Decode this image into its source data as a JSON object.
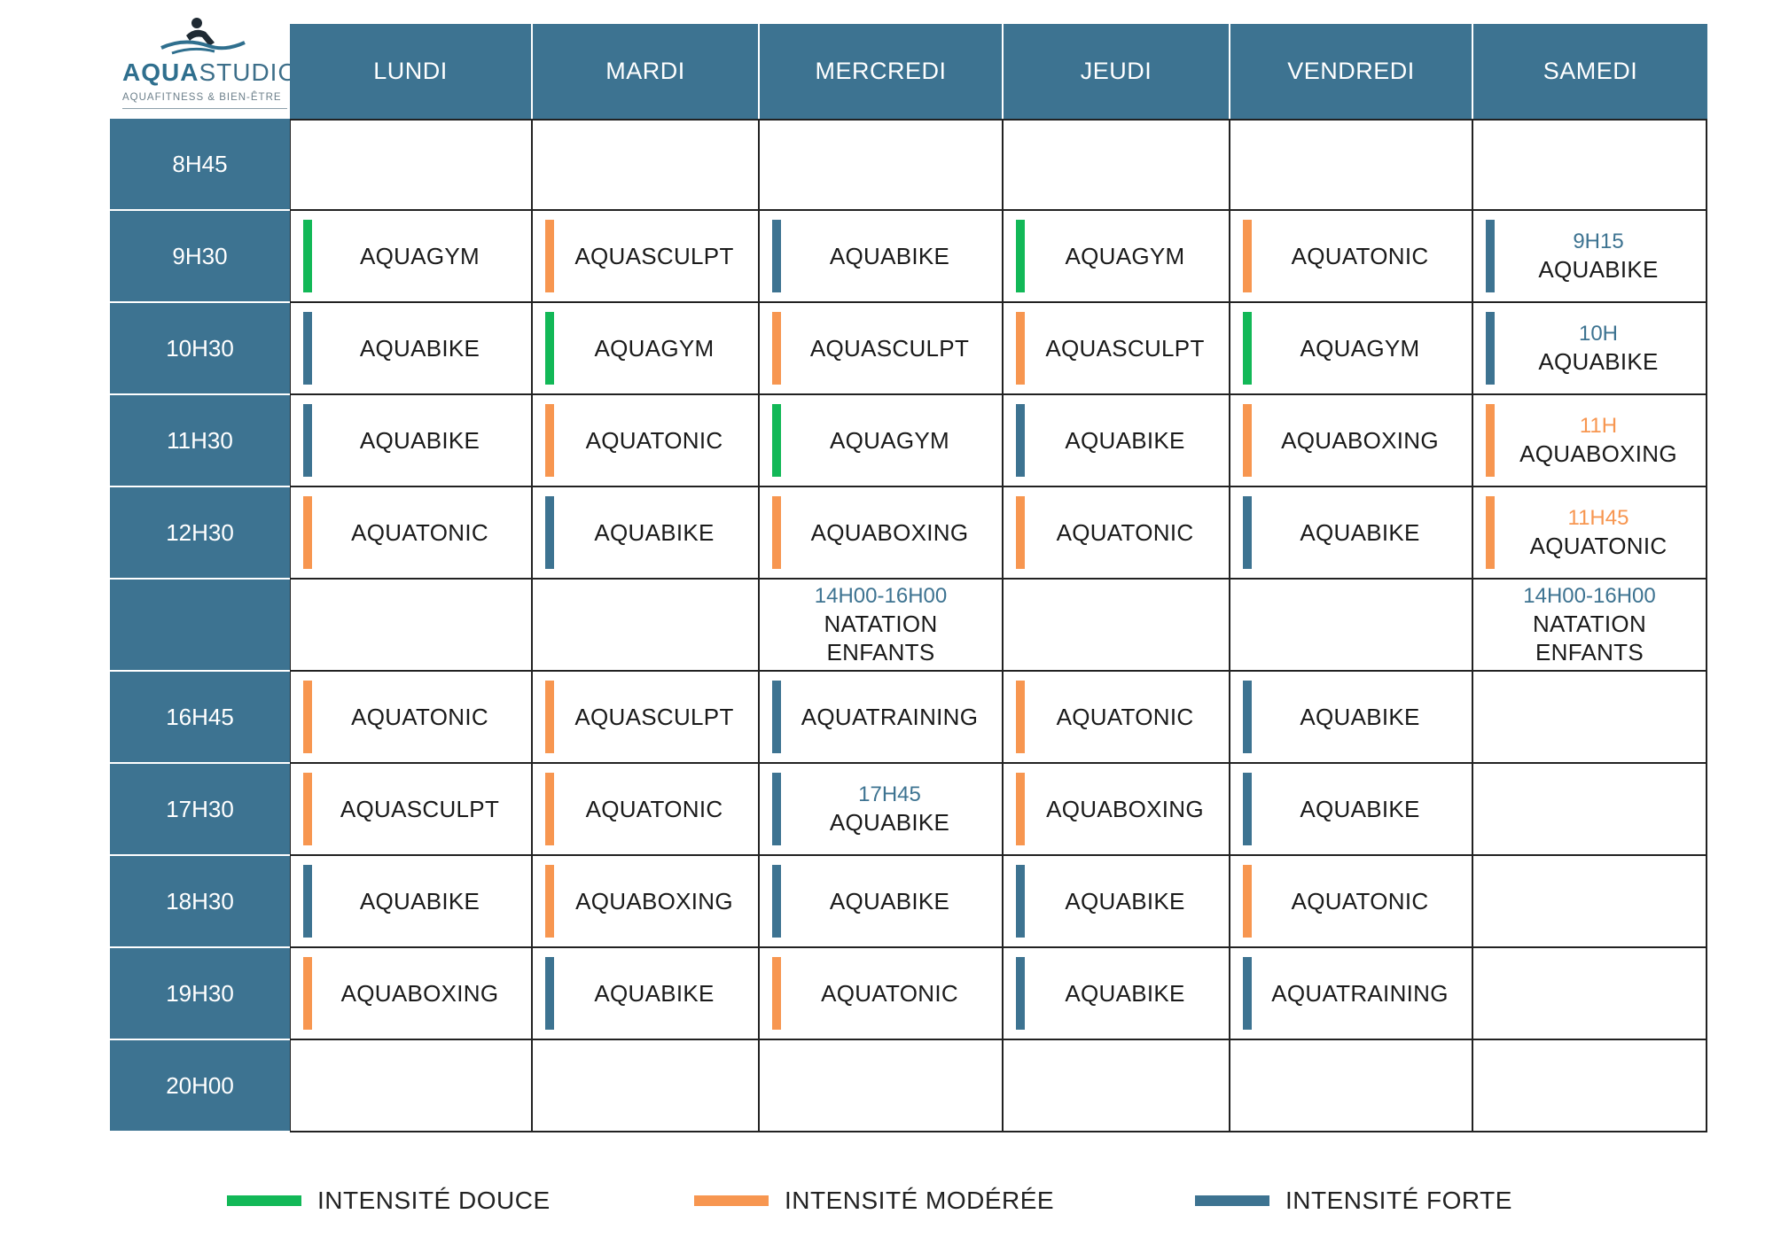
{
  "logo": {
    "name_part1": "AQUA",
    "name_part2": "STUDIO",
    "tagline": "AQUAFITNESS & BIEN-ÊTRE"
  },
  "colors": {
    "douce": "#12b857",
    "moderee": "#f79650",
    "forte": "#3d7391",
    "header_bg": "#3d7391"
  },
  "days": [
    "LUNDI",
    "MARDI",
    "MERCREDI",
    "JEUDI",
    "VENDREDI",
    "SAMEDI"
  ],
  "rows": [
    {
      "time": "8H45",
      "cells": [
        null,
        null,
        null,
        null,
        null,
        null
      ]
    },
    {
      "time": "9H30",
      "cells": [
        {
          "class": "AQUAGYM",
          "intensity": "douce"
        },
        {
          "class": "AQUASCULPT",
          "intensity": "moderee"
        },
        {
          "class": "AQUABIKE",
          "intensity": "forte"
        },
        {
          "class": "AQUAGYM",
          "intensity": "douce"
        },
        {
          "class": "AQUATONIC",
          "intensity": "moderee"
        },
        {
          "class": "AQUABIKE",
          "intensity": "forte",
          "time": "9H15"
        }
      ]
    },
    {
      "time": "10H30",
      "cells": [
        {
          "class": "AQUABIKE",
          "intensity": "forte"
        },
        {
          "class": "AQUAGYM",
          "intensity": "douce"
        },
        {
          "class": "AQUASCULPT",
          "intensity": "moderee"
        },
        {
          "class": "AQUASCULPT",
          "intensity": "moderee"
        },
        {
          "class": "AQUAGYM",
          "intensity": "douce"
        },
        {
          "class": "AQUABIKE",
          "intensity": "forte",
          "time": "10H"
        }
      ]
    },
    {
      "time": "11H30",
      "cells": [
        {
          "class": "AQUABIKE",
          "intensity": "forte"
        },
        {
          "class": "AQUATONIC",
          "intensity": "moderee"
        },
        {
          "class": "AQUAGYM",
          "intensity": "douce"
        },
        {
          "class": "AQUABIKE",
          "intensity": "forte"
        },
        {
          "class": "AQUABOXING",
          "intensity": "moderee"
        },
        {
          "class": "AQUABOXING",
          "intensity": "moderee",
          "time": "11H"
        }
      ]
    },
    {
      "time": "12H30",
      "cells": [
        {
          "class": "AQUATONIC",
          "intensity": "moderee"
        },
        {
          "class": "AQUABIKE",
          "intensity": "forte"
        },
        {
          "class": "AQUABOXING",
          "intensity": "moderee"
        },
        {
          "class": "AQUATONIC",
          "intensity": "moderee"
        },
        {
          "class": "AQUABIKE",
          "intensity": "forte"
        },
        {
          "class": "AQUATONIC",
          "intensity": "moderee",
          "time": "11H45"
        }
      ]
    },
    {
      "time": "",
      "cells": [
        null,
        null,
        {
          "class": "NATATION",
          "class2": "ENFANTS",
          "time": "14H00-16H00"
        },
        null,
        null,
        {
          "class": "NATATION",
          "class2": "ENFANTS",
          "time": "14H00-16H00"
        }
      ]
    },
    {
      "time": "16H45",
      "cells": [
        {
          "class": "AQUATONIC",
          "intensity": "moderee"
        },
        {
          "class": "AQUASCULPT",
          "intensity": "moderee"
        },
        {
          "class": "AQUATRAINING",
          "intensity": "forte"
        },
        {
          "class": "AQUATONIC",
          "intensity": "moderee"
        },
        {
          "class": "AQUABIKE",
          "intensity": "forte"
        },
        null
      ]
    },
    {
      "time": "17H30",
      "cells": [
        {
          "class": "AQUASCULPT",
          "intensity": "moderee"
        },
        {
          "class": "AQUATONIC",
          "intensity": "moderee"
        },
        {
          "class": "AQUABIKE",
          "intensity": "forte",
          "time": "17H45"
        },
        {
          "class": "AQUABOXING",
          "intensity": "moderee"
        },
        {
          "class": "AQUABIKE",
          "intensity": "forte"
        },
        null
      ]
    },
    {
      "time": "18H30",
      "cells": [
        {
          "class": "AQUABIKE",
          "intensity": "forte"
        },
        {
          "class": "AQUABOXING",
          "intensity": "moderee"
        },
        {
          "class": "AQUABIKE",
          "intensity": "forte"
        },
        {
          "class": "AQUABIKE",
          "intensity": "forte"
        },
        {
          "class": "AQUATONIC",
          "intensity": "moderee"
        },
        null
      ]
    },
    {
      "time": "19H30",
      "cells": [
        {
          "class": "AQUABOXING",
          "intensity": "moderee"
        },
        {
          "class": "AQUABIKE",
          "intensity": "forte"
        },
        {
          "class": "AQUATONIC",
          "intensity": "moderee"
        },
        {
          "class": "AQUABIKE",
          "intensity": "forte"
        },
        {
          "class": "AQUATRAINING",
          "intensity": "forte"
        },
        null
      ]
    },
    {
      "time": "20H00",
      "cells": [
        null,
        null,
        null,
        null,
        null,
        null
      ]
    }
  ],
  "legend": [
    {
      "key": "douce",
      "label": "INTENSITÉ DOUCE"
    },
    {
      "key": "moderee",
      "label": "INTENSITÉ MODÉRÉE"
    },
    {
      "key": "forte",
      "label": "INTENSITÉ FORTE"
    }
  ]
}
